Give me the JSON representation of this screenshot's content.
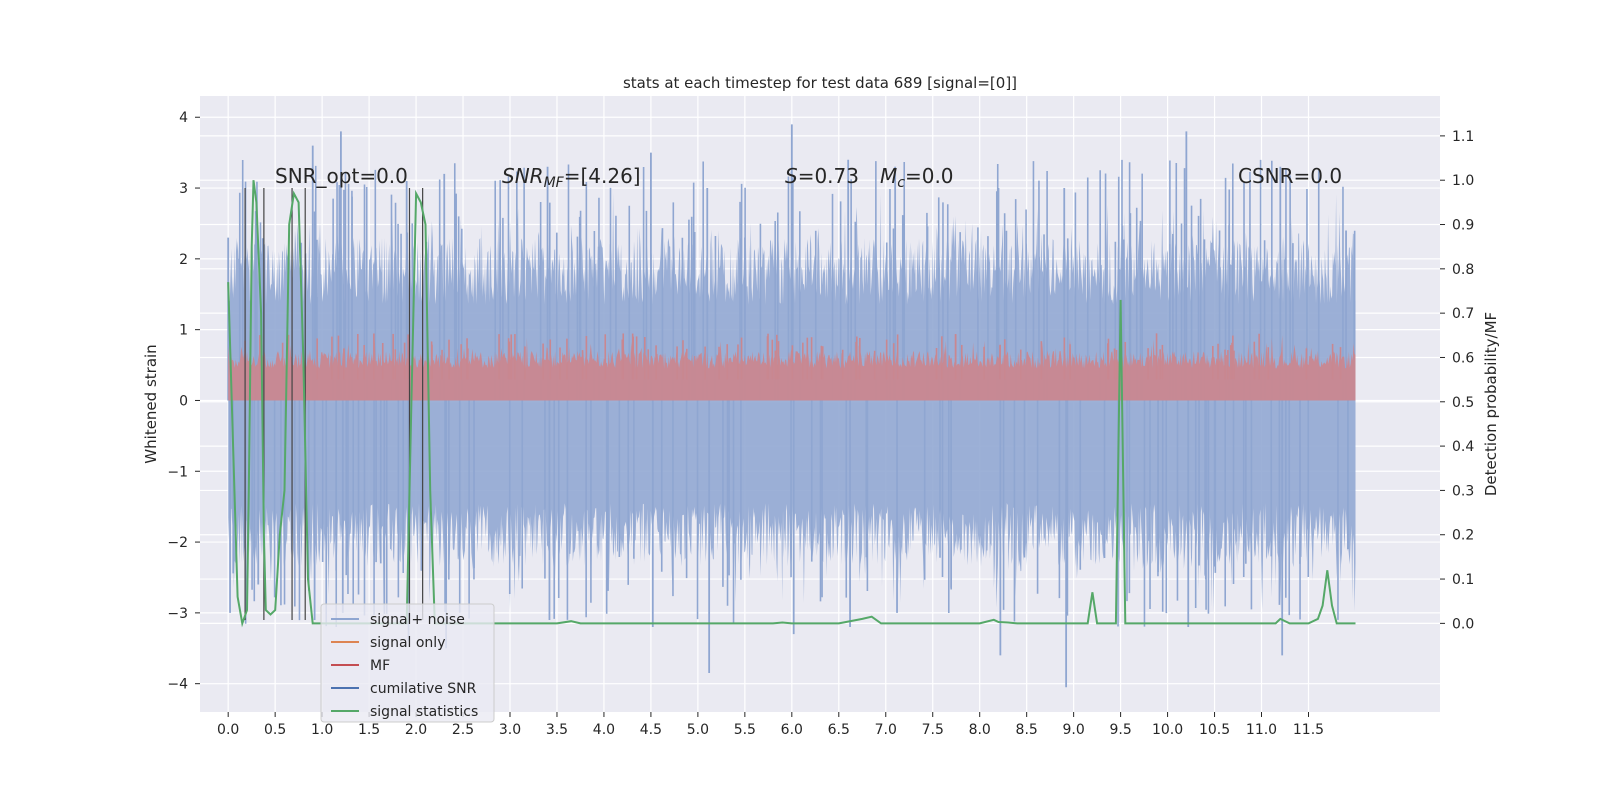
{
  "chart_data": {
    "type": "line",
    "title": "stats at each timestep for test data 689 [signal=[0]]",
    "ylabel": "Whitened strain",
    "ylabel_right": "Detection probability/MF",
    "xlim": [
      -0.3,
      12.9
    ],
    "ylim": [
      -4.4,
      4.3
    ],
    "ylim_right": [
      -0.2,
      1.19
    ],
    "grid": true,
    "x_ticks": [
      "0.0",
      "0.5",
      "1.0",
      "1.5",
      "2.0",
      "2.5",
      "3.0",
      "3.5",
      "4.0",
      "4.5",
      "5.0",
      "5.5",
      "6.0",
      "6.5",
      "7.0",
      "7.5",
      "8.0",
      "8.5",
      "9.0",
      "9.5",
      "10.0",
      "10.5",
      "11.0",
      "11.5"
    ],
    "y_ticks": [
      "4",
      "3",
      "2",
      "1",
      "0",
      "−1",
      "−2",
      "−3",
      "−4"
    ],
    "y_ticks_right": [
      "1.1",
      "1.0",
      "0.9",
      "0.8",
      "0.7",
      "0.6",
      "0.5",
      "0.4",
      "0.3",
      "0.2",
      "0.1",
      "0.0"
    ],
    "annotations": {
      "snr_opt": "SNR_opt=0.0",
      "snr_mf_sym": "SNR",
      "snr_mf_sub": "MF",
      "snr_mf_val": "=[4.26]",
      "s_sym": "S",
      "s_val": "=0.73",
      "mc_sym": "M",
      "mc_sub": "c",
      "mc_val": "=0.0",
      "csnr": "CSNR=0.0"
    },
    "legend_placement": "lower-left",
    "legend": [
      {
        "label": "signal+ noise",
        "color": "#8fa6d1"
      },
      {
        "label": "signal only",
        "color": "#dd8452"
      },
      {
        "label": "MF",
        "color": "#c44e52"
      },
      {
        "label": "cumilative SNR",
        "color": "#4c72b0"
      },
      {
        "label": "signal statistics",
        "color": "#55a868"
      }
    ],
    "series": [
      {
        "name": "signal+ noise",
        "color": "#8fa6d1",
        "x_range": [
          0.0,
          12.0
        ],
        "envelope_peaks": [
          [
            0.0,
            2.3,
            -3.0
          ],
          [
            0.3,
            2.9,
            -2.6
          ],
          [
            0.9,
            3.6,
            -3.1
          ],
          [
            1.2,
            3.8,
            -3.0
          ],
          [
            1.9,
            3.1,
            -3.4
          ],
          [
            2.3,
            3.2,
            -3.5
          ],
          [
            3.4,
            3.3,
            -3.1
          ],
          [
            4.5,
            3.5,
            -3.2
          ],
          [
            5.1,
            3.0,
            -3.85
          ],
          [
            6.0,
            3.9,
            -3.3
          ],
          [
            6.6,
            3.4,
            -3.2
          ],
          [
            7.1,
            3.3,
            -3.0
          ],
          [
            8.2,
            3.0,
            -3.6
          ],
          [
            8.9,
            3.0,
            -4.05
          ],
          [
            10.2,
            3.8,
            -3.2
          ],
          [
            11.2,
            3.3,
            -3.6
          ],
          [
            11.9,
            2.4,
            -2.1
          ]
        ]
      },
      {
        "name": "MF",
        "color": "#c44e52",
        "x_range": [
          0.0,
          12.0
        ],
        "band": [
          0.0,
          0.95
        ]
      },
      {
        "name": "signal statistics",
        "color": "#55a868",
        "axis": "right",
        "x": [
          0.0,
          0.1,
          0.15,
          0.2,
          0.22,
          0.25,
          0.27,
          0.3,
          0.35,
          0.38,
          0.4,
          0.45,
          0.5,
          0.55,
          0.6,
          0.65,
          0.7,
          0.75,
          0.8,
          0.85,
          0.9,
          1.0,
          1.2,
          1.5,
          1.9,
          1.95,
          2.0,
          2.05,
          2.1,
          2.15,
          2.2,
          2.25,
          2.3,
          2.5,
          3.0,
          3.5,
          3.65,
          3.75,
          4.0,
          5.0,
          5.8,
          5.9,
          6.0,
          6.5,
          6.75,
          6.85,
          6.95,
          7.5,
          8.0,
          8.15,
          8.2,
          8.3,
          8.4,
          8.6,
          9.0,
          9.15,
          9.2,
          9.25,
          9.4,
          9.45,
          9.5,
          9.55,
          9.7,
          10.0,
          11.0,
          11.15,
          11.2,
          11.3,
          11.5,
          11.6,
          11.65,
          11.7,
          11.75,
          11.8,
          11.9,
          12.0
        ],
        "y": [
          0.77,
          0.06,
          0.0,
          0.03,
          0.3,
          0.85,
          1.0,
          0.95,
          0.7,
          0.2,
          0.03,
          0.02,
          0.03,
          0.2,
          0.3,
          0.9,
          0.97,
          0.95,
          0.6,
          0.1,
          0.0,
          0.0,
          0.0,
          0.0,
          0.0,
          0.5,
          0.97,
          0.95,
          0.9,
          0.3,
          0.0,
          0.0,
          0.0,
          0.0,
          0.0,
          0.0,
          0.005,
          0.0,
          0.0,
          0.0,
          0.0,
          0.002,
          0.0,
          0.0,
          0.01,
          0.015,
          0.0,
          0.0,
          0.0,
          0.008,
          0.003,
          0.002,
          0.0,
          0.0,
          0.0,
          0.0,
          0.07,
          0.0,
          0.0,
          0.0,
          0.73,
          0.0,
          0.0,
          0.0,
          0.0,
          0.0,
          0.01,
          0.0,
          0.0,
          0.01,
          0.04,
          0.12,
          0.04,
          0.0,
          0.0,
          0.0
        ]
      }
    ],
    "markers": [
      {
        "x": 0.18,
        "y0": -3.1,
        "y1": 3.0
      },
      {
        "x": 0.38,
        "y0": -3.1,
        "y1": 3.0
      },
      {
        "x": 0.68,
        "y0": -3.1,
        "y1": 3.0
      },
      {
        "x": 0.82,
        "y0": -3.1,
        "y1": 3.0
      },
      {
        "x": 1.93,
        "y0": -3.1,
        "y1": 3.0
      },
      {
        "x": 2.07,
        "y0": -3.1,
        "y1": 3.0
      }
    ]
  }
}
